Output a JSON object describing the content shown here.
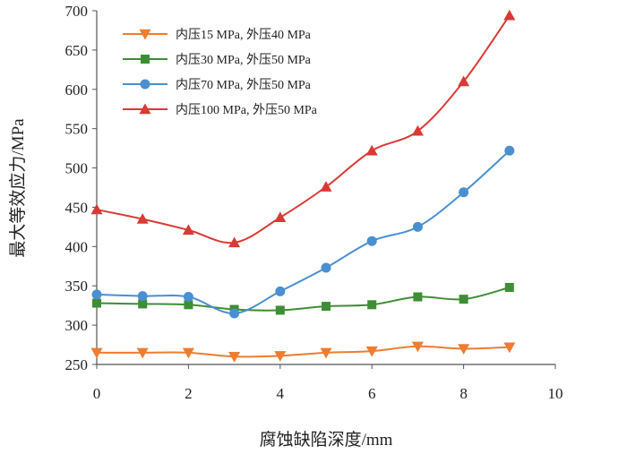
{
  "chart_data": {
    "type": "line",
    "title": "",
    "xlabel": "腐蚀缺陷深度/mm",
    "ylabel": "最大等效应力/MPa",
    "xlim": [
      0,
      10
    ],
    "ylim": [
      250,
      700
    ],
    "xticks": [
      "0",
      "2",
      "4",
      "6",
      "8",
      "10"
    ],
    "yticks": [
      "250",
      "300",
      "350",
      "400",
      "450",
      "500",
      "550",
      "600",
      "650",
      "700"
    ],
    "grid": false,
    "legend_position": "top-left",
    "x": [
      0,
      1,
      2,
      3,
      4,
      5,
      6,
      7,
      8,
      9
    ],
    "series": [
      {
        "name": "内压15 MPa, 外压40 MPa",
        "marker": "triangle-down",
        "color": "#ED7D31",
        "values": [
          265,
          265,
          265,
          260,
          261,
          265,
          267,
          273,
          270,
          272
        ]
      },
      {
        "name": "内压30 MPa, 外压50 MPa",
        "marker": "square",
        "color": "#3E8E35",
        "values": [
          328,
          327,
          326,
          320,
          319,
          324,
          326,
          336,
          333,
          348
        ]
      },
      {
        "name": "内压70 MPa, 外压50 MPa",
        "marker": "circle",
        "color": "#4A8FD0",
        "values": [
          339,
          337,
          336,
          315,
          343,
          373,
          407,
          425,
          469,
          522
        ]
      },
      {
        "name": "内压100 MPa, 外压50 MPa",
        "marker": "triangle-up",
        "color": "#D93A35",
        "values": [
          447,
          435,
          421,
          405,
          437,
          476,
          522,
          547,
          610,
          694
        ]
      }
    ]
  }
}
